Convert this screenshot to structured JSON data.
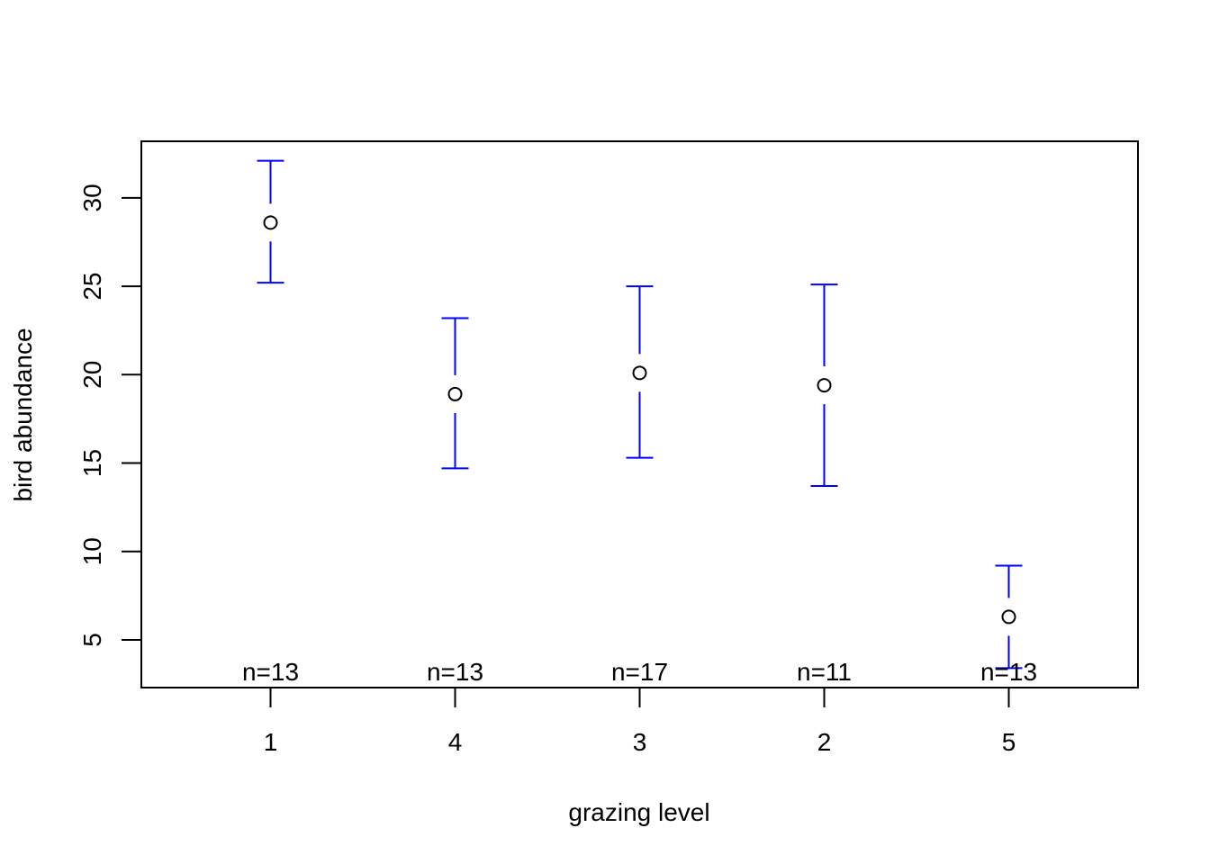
{
  "chart_data": {
    "type": "scatter",
    "subtype": "means-with-error-bars",
    "title": "",
    "xlabel": "grazing level",
    "ylabel": "bird abundance",
    "categories": [
      "1",
      "4",
      "3",
      "2",
      "5"
    ],
    "means": [
      28.6,
      18.9,
      20.1,
      19.4,
      6.3
    ],
    "lower": [
      25.2,
      14.7,
      15.3,
      13.7,
      3.4
    ],
    "upper": [
      32.1,
      23.2,
      25.0,
      25.1,
      9.2
    ],
    "n_labels": [
      "n=13",
      "n=13",
      "n=17",
      "n=11",
      "n=13"
    ],
    "yticks": [
      5,
      10,
      15,
      20,
      25,
      30
    ],
    "ylim": [
      2.3,
      33.2
    ],
    "xlim": [
      0.3,
      5.7
    ],
    "errorbar_color": "#0000ff",
    "point_color": "#000000",
    "grid": false,
    "legend": "none"
  }
}
